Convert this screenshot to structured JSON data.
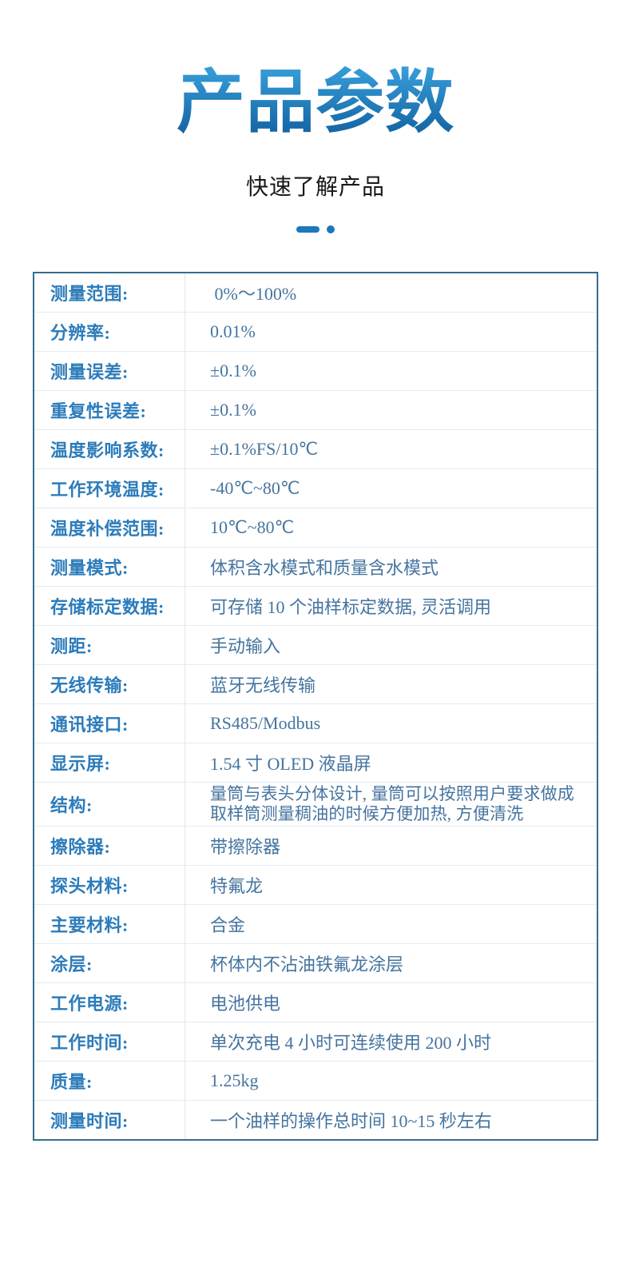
{
  "header": {
    "title": "产品参数",
    "subtitle": "快速了解产品"
  },
  "colors": {
    "title_gradient_top": "#38a0dc",
    "title_gradient_bottom": "#1565a4",
    "accent_blue": "#1b78bc",
    "label_text": "#2c7cbb",
    "value_text": "#45749f",
    "table_outer_border": "#346e90",
    "table_inner_divider": "#e2ebf3",
    "page_background": "#ffffff"
  },
  "table": {
    "rows": [
      {
        "label": "测量范围:",
        "value": " 0%～100%"
      },
      {
        "label": "分辨率:",
        "value": "0.01%"
      },
      {
        "label": "测量误差:",
        "value": "±0.1%"
      },
      {
        "label": "重复性误差:",
        "value": "±0.1%"
      },
      {
        "label": "温度影响系数:",
        "value": "±0.1%FS/10℃"
      },
      {
        "label": "工作环境温度:",
        "value": "-40℃~80℃"
      },
      {
        "label": "温度补偿范围:",
        "value": "10℃~80℃"
      },
      {
        "label": "测量模式:",
        "value": "体积含水模式和质量含水模式"
      },
      {
        "label": "存储标定数据:",
        "value": "可存储 10 个油样标定数据, 灵活调用"
      },
      {
        "label": "测距:",
        "value": "手动输入"
      },
      {
        "label": "无线传输:",
        "value": "蓝牙无线传输"
      },
      {
        "label": "通讯接口:",
        "value": "RS485/Modbus"
      },
      {
        "label": "显示屏:",
        "value": "1.54 寸 OLED 液晶屏"
      },
      {
        "label": "结构:",
        "value": "量筒与表头分体设计, 量筒可以按照用户要求做成取样筒测量稠油的时候方便加热, 方便清洗"
      },
      {
        "label": "擦除器:",
        "value": "带擦除器"
      },
      {
        "label": "探头材料:",
        "value": "特氟龙"
      },
      {
        "label": "主要材料:",
        "value": "合金"
      },
      {
        "label": "涂层:",
        "value": "杯体内不沾油铁氟龙涂层"
      },
      {
        "label": "工作电源:",
        "value": "电池供电"
      },
      {
        "label": "工作时间:",
        "value": "单次充电 4 小时可连续使用 200 小时"
      },
      {
        "label": "质量:",
        "value": "1.25kg"
      },
      {
        "label": "测量时间:",
        "value": "一个油样的操作总时间 10~15 秒左右"
      }
    ]
  }
}
